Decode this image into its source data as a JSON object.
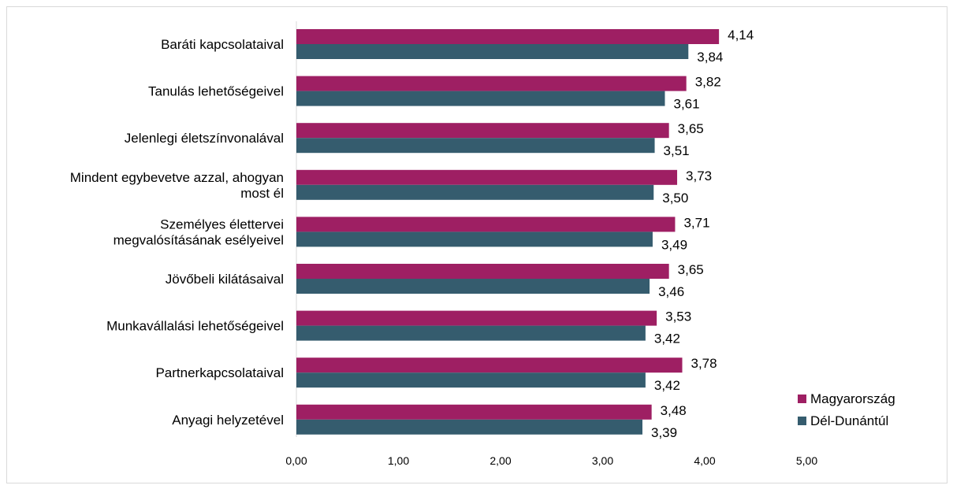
{
  "chart_data": {
    "type": "bar",
    "orientation": "horizontal",
    "title": "",
    "xlabel": "",
    "ylabel": "",
    "xlim": [
      0,
      5
    ],
    "x_ticks": [
      "0,00",
      "1,00",
      "2,00",
      "3,00",
      "4,00",
      "5,00"
    ],
    "grid": false,
    "legend_position": "bottom-right",
    "categories": [
      [
        "Baráti kapcsolataival"
      ],
      [
        "Tanulás lehetőségeivel"
      ],
      [
        "Jelenlegi életszínvonalával"
      ],
      [
        "Mindent egybevetve azzal, ahogyan",
        "most él"
      ],
      [
        "Személyes élettervei",
        "megvalósításának esélyeivel"
      ],
      [
        "Jövőbeli kilátásaival"
      ],
      [
        "Munkavállalási lehetőségeivel"
      ],
      [
        "Partnerkapcsolataival"
      ],
      [
        "Anyagi helyzetével"
      ]
    ],
    "series": [
      {
        "name": "Magyarország",
        "color": "#9e1f63",
        "values": [
          4.14,
          3.82,
          3.65,
          3.73,
          3.71,
          3.65,
          3.53,
          3.78,
          3.48
        ],
        "labels": [
          "4,14",
          "3,82",
          "3,65",
          "3,73",
          "3,71",
          "3,65",
          "3,53",
          "3,78",
          "3,48"
        ]
      },
      {
        "name": "Dél-Dunántúl",
        "color": "#355c6e",
        "values": [
          3.84,
          3.61,
          3.51,
          3.5,
          3.49,
          3.46,
          3.42,
          3.42,
          3.39
        ],
        "labels": [
          "3,84",
          "3,61",
          "3,51",
          "3,50",
          "3,49",
          "3,46",
          "3,42",
          "3,42",
          "3,39"
        ]
      }
    ]
  }
}
